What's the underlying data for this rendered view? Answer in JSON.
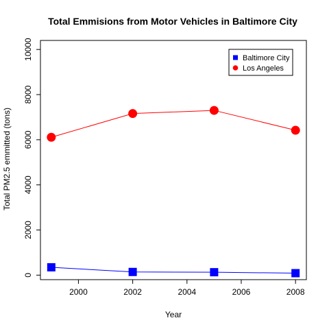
{
  "chart_data": {
    "type": "line",
    "title": "Total Emmisions from Motor Vehicles in Baltimore City",
    "xlabel": "Year",
    "ylabel": "Total PM2.5 emmitted (tons)",
    "x": [
      1999,
      2002,
      2005,
      2008
    ],
    "xlim": [
      1998.6,
      2008.4
    ],
    "ylim": [
      -200,
      10400
    ],
    "xticks": [
      2000,
      2002,
      2004,
      2006,
      2008
    ],
    "yticks": [
      0,
      2000,
      4000,
      6000,
      8000,
      10000
    ],
    "xtick_labels": [
      "2000",
      "2002",
      "2004",
      "2006",
      "2008"
    ],
    "ytick_labels": [
      "0",
      "2000",
      "4000",
      "6000",
      "8000",
      "10000"
    ],
    "grid": false,
    "legend_position": "top-right",
    "series": [
      {
        "name": "Baltimore City",
        "values": [
          347,
          141,
          130,
          88
        ],
        "color": "#0000ff",
        "marker": "square"
      },
      {
        "name": "Los Angeles",
        "values": [
          6110,
          7160,
          7300,
          6420
        ],
        "color": "#ff0000",
        "marker": "circle"
      }
    ]
  }
}
